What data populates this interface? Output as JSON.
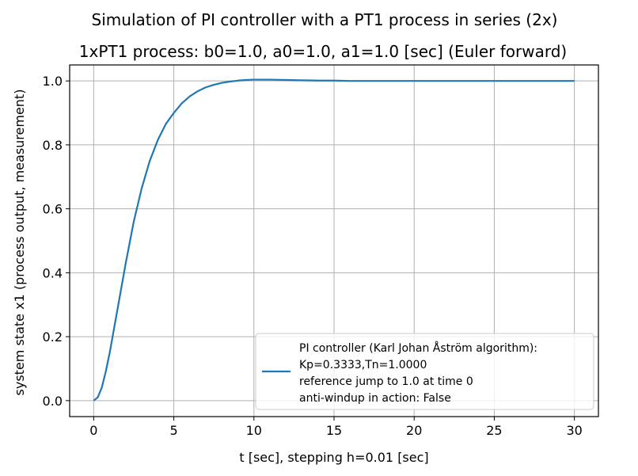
{
  "chart_data": {
    "type": "line",
    "title": "Simulation of PI controller with a PT1 process in series (2x)",
    "subtitle": "1xPT1 process: b0=1.0, a0=1.0, a1=1.0 [sec] (Euler forward)",
    "xlabel": "t [sec], stepping h=0.01 [sec]",
    "ylabel": "system state x1 (process output, measurement)",
    "xlim": [
      -1.5,
      31.5
    ],
    "ylim": [
      -0.05,
      1.05
    ],
    "xticks": [
      0,
      5,
      10,
      15,
      20,
      25,
      30
    ],
    "yticks": [
      0.0,
      0.2,
      0.4,
      0.6,
      0.8,
      1.0
    ],
    "xtick_labels": [
      "0",
      "5",
      "10",
      "15",
      "20",
      "25",
      "30"
    ],
    "ytick_labels": [
      "0.0",
      "0.2",
      "0.4",
      "0.6",
      "0.8",
      "1.0"
    ],
    "grid": true,
    "legend_position": "lower right",
    "series": [
      {
        "color": "#1f77b4",
        "x": [
          0,
          0.25,
          0.5,
          0.75,
          1,
          1.5,
          2,
          2.5,
          3,
          3.5,
          4,
          4.5,
          5,
          5.5,
          6,
          6.5,
          7,
          7.5,
          8,
          8.5,
          9,
          9.5,
          10,
          10.5,
          11,
          12,
          13,
          14,
          15,
          16,
          18,
          20,
          22,
          25,
          28,
          30
        ],
        "y": [
          0,
          0.01,
          0.04,
          0.09,
          0.15,
          0.29,
          0.43,
          0.56,
          0.665,
          0.75,
          0.815,
          0.865,
          0.9,
          0.93,
          0.952,
          0.968,
          0.98,
          0.988,
          0.994,
          0.998,
          1.001,
          1.003,
          1.004,
          1.004,
          1.004,
          1.003,
          1.002,
          1.001,
          1.001,
          1.0,
          1.0,
          1.0,
          1.0,
          1.0,
          1.0,
          1.0
        ]
      }
    ],
    "legend_lines": [
      "PI controller (Karl Johan Åström algorithm):",
      "Kp=0.3333,Tn=1.0000",
      "reference jump to 1.0 at time 0",
      "anti-windup in action: False"
    ]
  }
}
